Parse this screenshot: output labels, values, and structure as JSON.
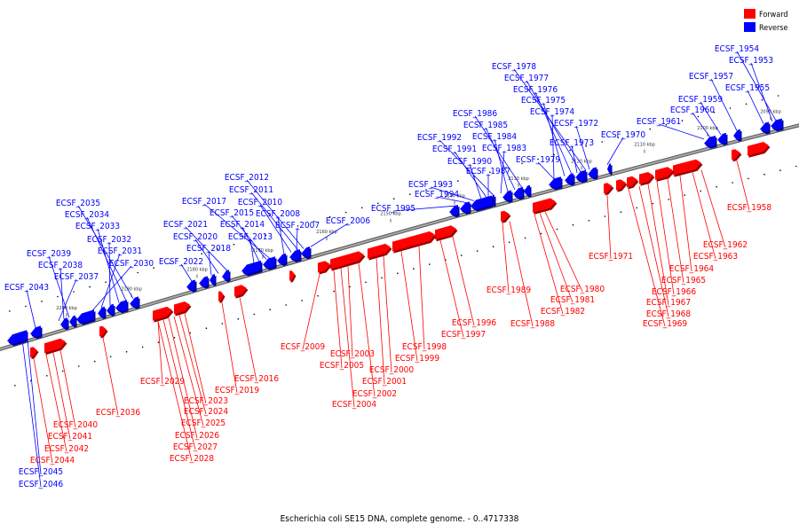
{
  "legend": [
    {
      "label": "Forward",
      "color": "#ff0000"
    },
    {
      "label": "Reverse",
      "color": "#0000ff"
    }
  ],
  "caption": "Escherichia coli SE15 DNA, complete genome. - 0..4717338",
  "axis_ticks": [
    "2090 kbp",
    "2100 kbp",
    "2110 kbp",
    "2120 kbp",
    "2130 kbp",
    "2140 kbp",
    "2150 kbp",
    "2160 kbp",
    "2170 kbp",
    "2180 kbp",
    "2190 kbp",
    "2200 kbp"
  ],
  "colors": {
    "forward": "#ff0000",
    "reverse": "#0000ff",
    "backbone": "#808080"
  },
  "forward_labels": [
    "ECSF_1958",
    "ECSF_1962",
    "ECSF_1963",
    "ECSF_1964",
    "ECSF_1965",
    "ECSF_1966",
    "ECSF_1967",
    "ECSF_1968",
    "ECSF_1969",
    "ECSF_1971",
    "ECSF_1980",
    "ECSF_1981",
    "ECSF_1982",
    "ECSF_1988",
    "ECSF_1989",
    "ECSF_1996",
    "ECSF_1997",
    "ECSF_1998",
    "ECSF_1999",
    "ECSF_2000",
    "ECSF_2001",
    "ECSF_2002",
    "ECSF_2003",
    "ECSF_2004",
    "ECSF_2005",
    "ECSF_2009",
    "ECSF_2016",
    "ECSF_2019",
    "ECSF_2023",
    "ECSF_2024",
    "ECSF_2025",
    "ECSF_2026",
    "ECSF_2027",
    "ECSF_2028",
    "ECSF_2029",
    "ECSF_2036",
    "ECSF_2040",
    "ECSF_2041",
    "ECSF_2042",
    "ECSF_2044"
  ],
  "reverse_labels": [
    "ECSF_1954",
    "ECSF_1953",
    "ECSF_1957",
    "ECSF_1955",
    "ECSF_1959",
    "ECSF_1960",
    "ECSF_1961",
    "ECSF_1978",
    "ECSF_1977",
    "ECSF_1976",
    "ECSF_1975",
    "ECSF_1974",
    "ECSF_1972",
    "ECSF_1973",
    "ECSF_1970",
    "ECSF_1986",
    "ECSF_1985",
    "ECSF_1984",
    "ECSF_1983",
    "ECSF_1992",
    "ECSF_1991",
    "ECSF_1990",
    "ECSF_1987",
    "ECSF_1979",
    "ECSF_1993",
    "ECSF_1994",
    "ECSF_1995",
    "ECSF_2006",
    "ECSF_2012",
    "ECSF_2011",
    "ECSF_2010",
    "ECSF_2008",
    "ECSF_2007",
    "ECSF_2017",
    "ECSF_2015",
    "ECSF_2014",
    "ECSF_2013",
    "ECSF_2021",
    "ECSF_2020",
    "ECSF_2018",
    "ECSF_2022",
    "ECSF_2035",
    "ECSF_2034",
    "ECSF_2033",
    "ECSF_2032",
    "ECSF_2031",
    "ECSF_2030",
    "ECSF_2039",
    "ECSF_2038",
    "ECSF_2037",
    "ECSF_2043",
    "ECSF_2045",
    "ECSF_2046"
  ]
}
